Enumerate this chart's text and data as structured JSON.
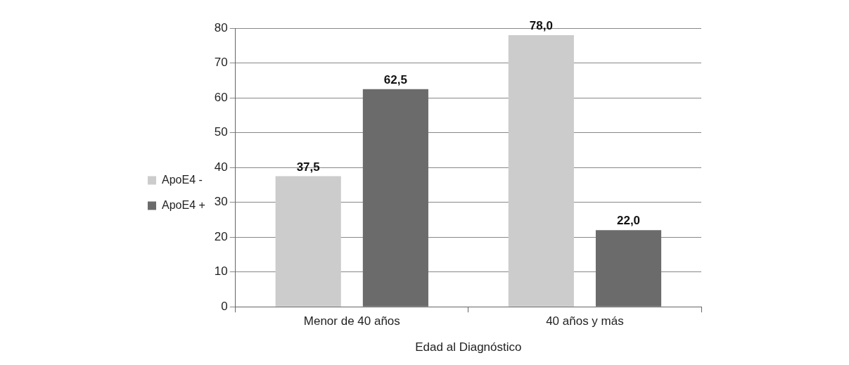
{
  "chart_data": {
    "type": "bar",
    "xlabel": "Edad al Diagnóstico",
    "categories": [
      "Menor de 40 años",
      "40 años y más"
    ],
    "series": [
      {
        "name": "ApoE4 -",
        "color": "#cccccc",
        "values": [
          37.5,
          78.0
        ],
        "value_labels": [
          "37,5",
          "78,0"
        ]
      },
      {
        "name": "ApoE4 +",
        "color": "#6b6b6b",
        "values": [
          62.5,
          22.0
        ],
        "value_labels": [
          "62,5",
          "22,0"
        ]
      }
    ],
    "ylim": [
      0,
      80
    ],
    "yticks": [
      0,
      10,
      20,
      30,
      40,
      50,
      60,
      70,
      80
    ],
    "grid": "y",
    "legend": "left"
  }
}
